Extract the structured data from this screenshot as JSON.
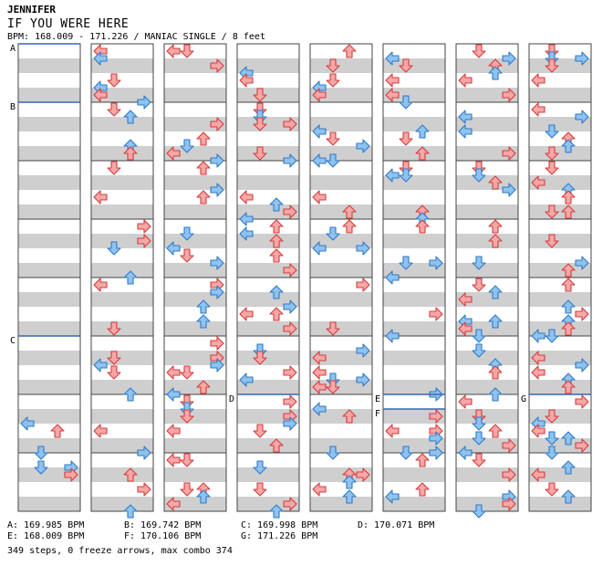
{
  "header": {
    "artist": "JENNIFER",
    "title": "IF YOU WERE HERE",
    "bpm_line": "BPM: 168.009 - 171.226 / MANIAC SINGLE / 8 feet"
  },
  "colors": {
    "stripe": "#cfcfcf",
    "quarter_note": "#f7a7a7",
    "quarter_note_stroke": "#d33c3c",
    "eighth_note": "#8fc3ef",
    "eighth_note_stroke": "#2f79c7",
    "bpm_marker_line": "#3a63b9"
  },
  "arrow_icons": [
    "left-arrow-icon",
    "down-arrow-icon",
    "up-arrow-icon",
    "right-arrow-icon"
  ],
  "bpm_markers": [
    {
      "label": "A",
      "column": 1,
      "measure": 1
    },
    {
      "label": "B",
      "column": 1,
      "measure": 2
    },
    {
      "label": "C",
      "column": 1,
      "measure": 6
    },
    {
      "label": "D",
      "column": 4,
      "measure": 7
    },
    {
      "label": "E",
      "column": 6,
      "measure": 7
    },
    {
      "label": "F",
      "column": 6,
      "measure": 7.25
    },
    {
      "label": "G",
      "column": 8,
      "measure": 7
    }
  ],
  "bpm_legend": [
    "A: 169.985 BPM",
    "B: 169.742 BPM",
    "C: 169.998 BPM",
    "D: 170.071 BPM",
    "E: 168.009 BPM",
    "F: 170.106 BPM",
    "G: 171.226 BPM"
  ],
  "stats": "349 steps, 0 freeze arrows, max combo 374"
}
